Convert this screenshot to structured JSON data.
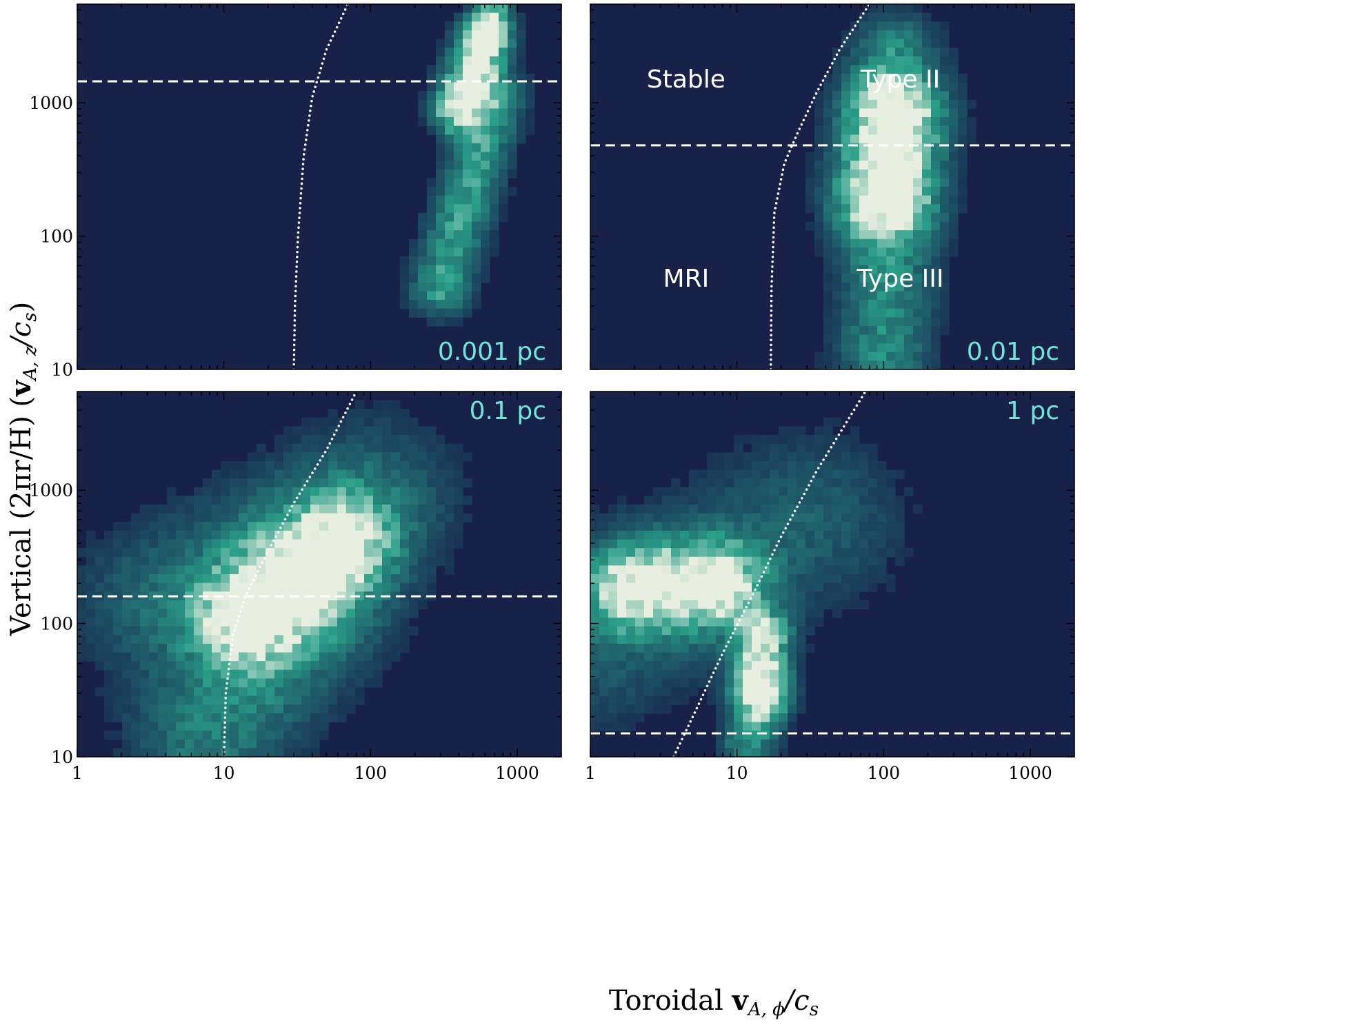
{
  "chart_data": {
    "type": "heatmap",
    "colormap": {
      "background": "#182148",
      "low": "#1c4a60",
      "mid": "#2a9e88",
      "high": "#e8efe0"
    },
    "curve_color": "#ffffff",
    "x_axis": {
      "label_prefix": "Toroidal ",
      "label_symbol": "v",
      "label_sub": "A, ϕ",
      "label_suffix": "/c",
      "label_suffix_sub": "s",
      "scale": "log",
      "range": [
        1,
        2000
      ],
      "ticks": [
        1,
        10,
        100,
        1000
      ],
      "tick_labels": [
        "1",
        "10",
        "100",
        "1000"
      ]
    },
    "y_axis": {
      "label_prefix": "Vertical (2πr/H) (",
      "label_symbol": "v",
      "label_sub": "A, z",
      "label_suffix": "/c",
      "label_suffix_sub": "s",
      "label_close": ")",
      "scale": "log",
      "range": [
        10,
        5500
      ],
      "ticks": [
        10,
        100,
        1000
      ],
      "tick_labels": [
        "10",
        "100",
        "1000"
      ]
    },
    "panels": [
      {
        "label": "0.001 pc",
        "label_position": "bottom-right",
        "dashed_y": 1450,
        "dotted_curve": [
          [
            30,
            10
          ],
          [
            30.5,
            30
          ],
          [
            32,
            100
          ],
          [
            35,
            400
          ],
          [
            40,
            1100
          ],
          [
            50,
            2500
          ],
          [
            70,
            5500
          ]
        ],
        "blobs": [
          {
            "x": [
              400,
              600
            ],
            "y": [
              900,
              3000
            ],
            "weight": 1.0,
            "spread": 0.12
          },
          {
            "x": [
              300,
              700
            ],
            "y": [
              40,
              1100
            ],
            "weight": 0.55,
            "spread": 0.14
          },
          {
            "x": [
              600,
              700
            ],
            "y": [
              3000,
              5000
            ],
            "weight": 0.6,
            "spread": 0.08
          }
        ],
        "region_labels": []
      },
      {
        "label": "0.01 pc",
        "label_position": "bottom-right",
        "dashed_y": 480,
        "dotted_curve": [
          [
            17,
            10
          ],
          [
            17.2,
            40
          ],
          [
            18,
            150
          ],
          [
            21,
            350
          ],
          [
            26,
            600
          ],
          [
            35,
            1200
          ],
          [
            50,
            2500
          ],
          [
            80,
            5500
          ]
        ],
        "blobs": [
          {
            "x": [
              100,
              120
            ],
            "y": [
              200,
              800
            ],
            "weight": 1.0,
            "spread": 0.22
          },
          {
            "x": [
              100,
              110
            ],
            "y": [
              12,
              200
            ],
            "weight": 0.45,
            "spread": 0.22
          },
          {
            "x": [
              110,
              120
            ],
            "y": [
              800,
              2500
            ],
            "weight": 0.4,
            "spread": 0.2
          }
        ],
        "region_labels": [
          {
            "text": "Stable",
            "x": 4.5,
            "y": 1500
          },
          {
            "text": "Type II",
            "x": 130,
            "y": 1500
          },
          {
            "text": "MRI",
            "x": 4.5,
            "y": 48
          },
          {
            "text": "Type III",
            "x": 130,
            "y": 48
          }
        ]
      },
      {
        "label": "0.1 pc",
        "label_position": "top-right",
        "dashed_y": 160,
        "dotted_curve": [
          [
            10,
            10
          ],
          [
            10.3,
            30
          ],
          [
            11.5,
            80
          ],
          [
            14,
            160
          ],
          [
            20,
            350
          ],
          [
            30,
            800
          ],
          [
            50,
            2000
          ],
          [
            80,
            5500
          ]
        ],
        "blobs": [
          {
            "x": [
              15,
              60
            ],
            "y": [
              120,
              400
            ],
            "weight": 1.0,
            "spread": 0.25
          },
          {
            "x": [
              8,
              40
            ],
            "y": [
              15,
              120
            ],
            "weight": 0.4,
            "spread": 0.35
          },
          {
            "x": [
              4,
              100
            ],
            "y": [
              150,
              900
            ],
            "weight": 0.3,
            "spread": 0.4
          }
        ],
        "region_labels": []
      },
      {
        "label": "1 pc",
        "label_position": "top-right",
        "dashed_y": 15,
        "dotted_curve": [
          [
            3.7,
            10
          ],
          [
            5,
            20
          ],
          [
            8,
            60
          ],
          [
            13,
            170
          ],
          [
            20,
            450
          ],
          [
            35,
            1400
          ],
          [
            75,
            5500
          ]
        ],
        "blobs": [
          {
            "x": [
              2,
              7
            ],
            "y": [
              190,
              200
            ],
            "weight": 1.0,
            "spread": 0.22
          },
          {
            "x": [
              14,
              15
            ],
            "y": [
              30,
              80
            ],
            "weight": 0.95,
            "spread": 0.12
          },
          {
            "x": [
              12,
              16
            ],
            "y": [
              12,
              30
            ],
            "weight": 0.5,
            "spread": 0.12
          },
          {
            "x": [
              1.2,
              30
            ],
            "y": [
              80,
              600
            ],
            "weight": 0.25,
            "spread": 0.45
          }
        ],
        "region_labels": []
      }
    ],
    "label_color": "#6fe6d8"
  }
}
